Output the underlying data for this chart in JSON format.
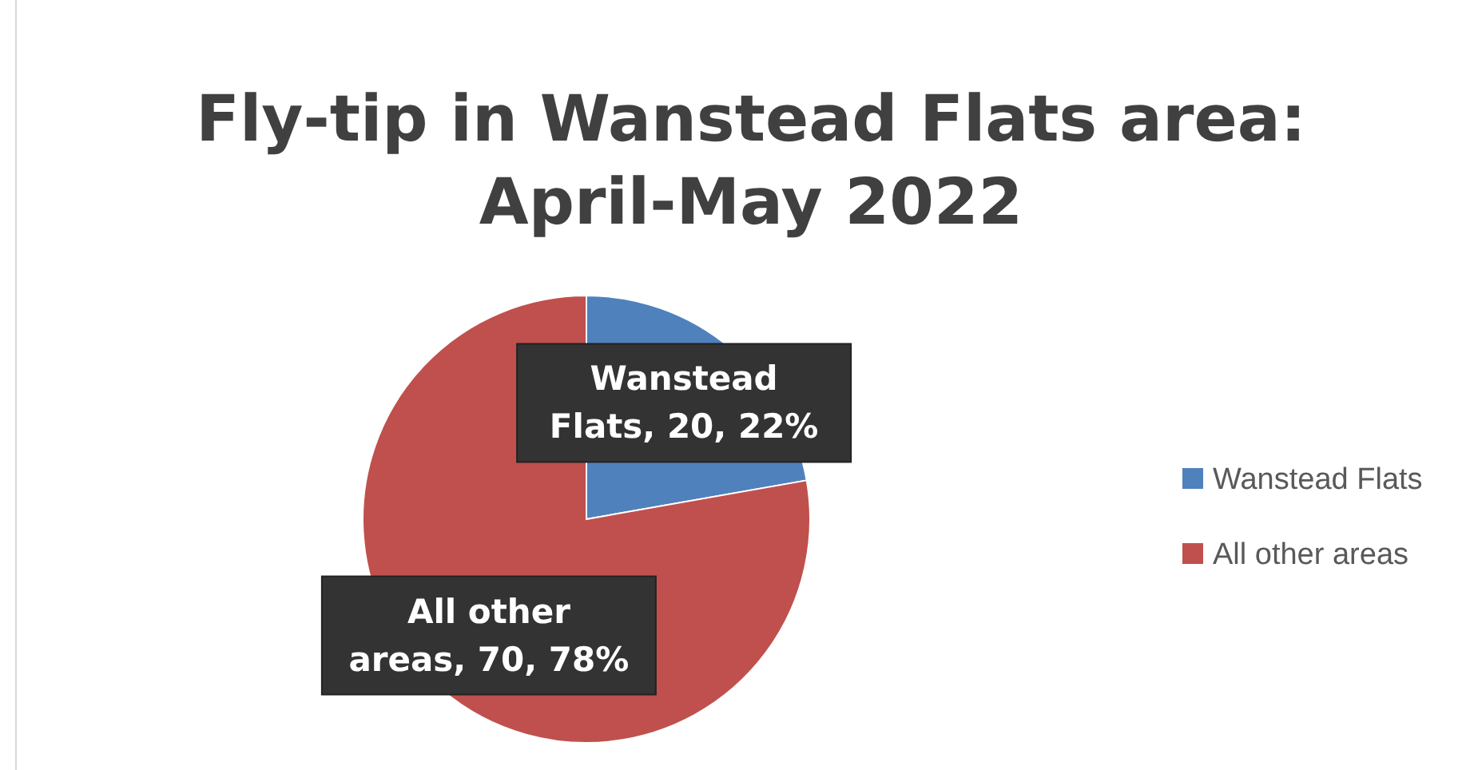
{
  "chart_data": {
    "type": "pie",
    "title": "Fly-tip in Wanstead Flats area: April-May 2022",
    "categories": [
      "Wanstead Flats",
      "All other areas"
    ],
    "values": [
      20,
      70
    ],
    "colors": [
      "#4f81bd",
      "#c0504d"
    ],
    "value_labels": [
      "Wanstead Flats, 20, 22%",
      "All other areas, 70, 78%"
    ],
    "legend": "right"
  }
}
